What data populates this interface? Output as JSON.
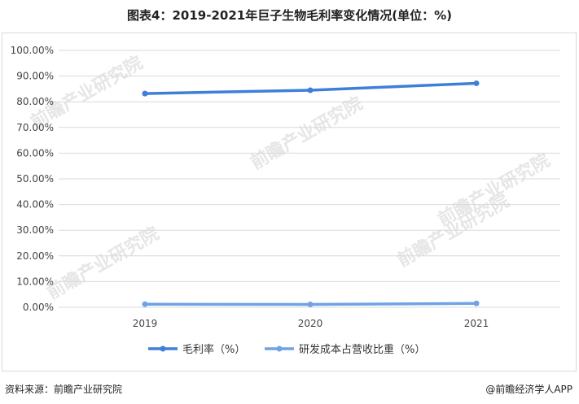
{
  "title": "图表4：2019-2021年巨子生物毛利率变化情况(单位：%)",
  "footer": {
    "source": "资料来源：前瞻产业研究院",
    "brand": "@前瞻经济学人APP"
  },
  "watermark": "前瞻产业研究院",
  "colors": {
    "series1": "#3f7fd8",
    "series2": "#6ea3e4",
    "grid": "#d9d9d9",
    "axis_text": "#444444"
  },
  "chart_data": {
    "type": "line",
    "title": "图表4：2019-2021年巨子生物毛利率变化情况(单位：%)",
    "x": [
      "2019",
      "2020",
      "2021"
    ],
    "yticks": [
      "0.00%",
      "10.00%",
      "20.00%",
      "30.00%",
      "40.00%",
      "50.00%",
      "60.00%",
      "70.00%",
      "80.00%",
      "90.00%",
      "100.00%"
    ],
    "ylim": [
      0,
      100
    ],
    "grid": true,
    "legend_position": "bottom",
    "series": [
      {
        "name": "毛利率（%）",
        "values": [
          83.2,
          84.5,
          87.2
        ]
      },
      {
        "name": "研发成本占营收比重（%）",
        "values": [
          1.2,
          1.1,
          1.5
        ]
      }
    ]
  }
}
